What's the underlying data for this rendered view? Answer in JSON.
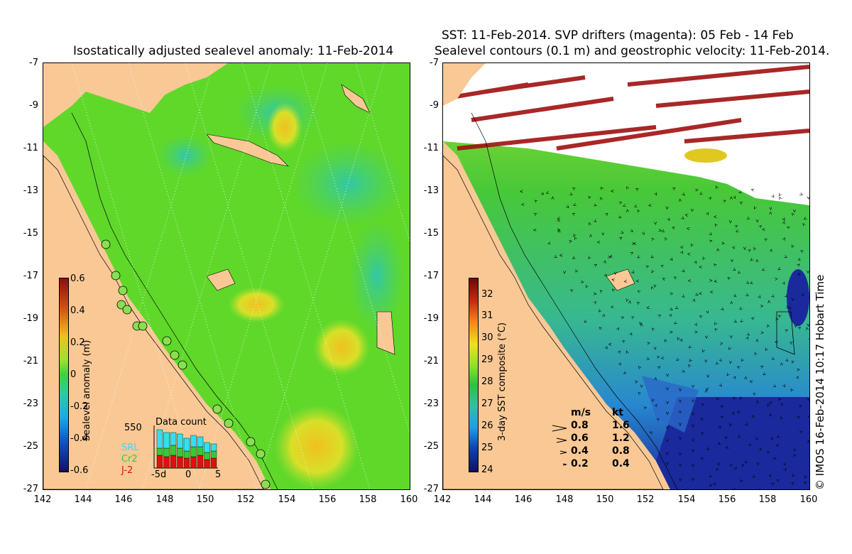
{
  "left_title": "Isostatically adjusted sealevel anomaly: 11-Feb-2014",
  "right_title_1": "SST: 11-Feb-2014. SVP drifters (magenta): 05 Feb - 14 Feb",
  "right_title_2": "Sealevel contours (0.1 m) and geostrophic velocity: 11-Feb-2014.",
  "y_ticks": [
    "-7",
    "-9",
    "-11",
    "-13",
    "-15",
    "-17",
    "-19",
    "-21",
    "-23",
    "-25",
    "-27"
  ],
  "x_ticks": [
    "142",
    "144",
    "146",
    "148",
    "150",
    "152",
    "154",
    "156",
    "158",
    "160"
  ],
  "sla_colorbar": {
    "label": "Sealevel anomaly (m)",
    "ticks": [
      "0.6",
      "0.4",
      "0.2",
      "0",
      "-0.2",
      "-0.4",
      "-0.6"
    ]
  },
  "sst_colorbar": {
    "label": "3-day SST composite (°C)",
    "ticks": [
      "32",
      "31",
      "30",
      "29",
      "28",
      "27",
      "26",
      "25",
      "24"
    ]
  },
  "data_count": {
    "title": "Data count",
    "max_label": "550",
    "legend": [
      {
        "name": "SRL",
        "color": "#33e0f0"
      },
      {
        "name": "Cr2",
        "color": "#33cc33"
      },
      {
        "name": "J-2",
        "color": "#e01010"
      }
    ],
    "x_ticks": [
      "-5d",
      "0",
      "5"
    ]
  },
  "velocity_legend": {
    "header_ms": "m/s",
    "header_kt": "kt",
    "rows": [
      {
        "ms": "0.8",
        "kt": "1.6"
      },
      {
        "ms": "0.6",
        "kt": "1.2"
      },
      {
        "ms": "0.4",
        "kt": "0.8"
      },
      {
        "ms": "0.2",
        "kt": "0.4"
      }
    ]
  },
  "credit": "© IMOS 16-Feb-2014 10:17 Hobart Time",
  "colors": {
    "land": "#f9c895",
    "ocean_green": "#5fd82a",
    "ocean_cyan": "#3ccf9a",
    "sst_deep_blue": "#1a2a9c"
  }
}
